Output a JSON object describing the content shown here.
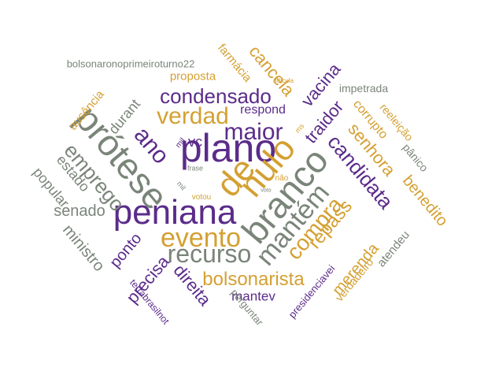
{
  "palette": {
    "purple": "#5b2c8a",
    "gold": "#d4a032",
    "gray": "#7a8579"
  },
  "words": [
    {
      "text": "plano",
      "color": "purple"
    },
    {
      "text": "peniana",
      "color": "purple"
    },
    {
      "text": "prótese",
      "color": "gray"
    },
    {
      "text": "branco",
      "color": "gray"
    },
    {
      "text": "nulo",
      "color": "gold"
    },
    {
      "text": "de",
      "color": "gold"
    },
    {
      "text": "evento",
      "color": "gold"
    },
    {
      "text": "mantém",
      "color": "gray"
    },
    {
      "text": "recurso",
      "color": "gray"
    },
    {
      "text": "maior",
      "color": "purple"
    },
    {
      "text": "verdad",
      "color": "gold"
    },
    {
      "text": "condensado",
      "color": "purple"
    },
    {
      "text": "ano",
      "color": "purple"
    },
    {
      "text": "compra",
      "color": "gold"
    },
    {
      "text": "candidata",
      "color": "purple"
    },
    {
      "text": "bolsonarista",
      "color": "gold"
    },
    {
      "text": "emprego",
      "color": "gray"
    },
    {
      "text": "senado",
      "color": "gray"
    },
    {
      "text": "repass",
      "color": "gold"
    },
    {
      "text": "benedito",
      "color": "gold"
    },
    {
      "text": "senhora",
      "color": "gold"
    },
    {
      "text": "cancela",
      "color": "gold"
    },
    {
      "text": "vacina",
      "color": "purple"
    },
    {
      "text": "traidor",
      "color": "purple"
    },
    {
      "text": "merenda",
      "color": "gold"
    },
    {
      "text": "precisa",
      "color": "purple"
    },
    {
      "text": "direita",
      "color": "purple"
    },
    {
      "text": "ponto",
      "color": "purple"
    },
    {
      "text": "ministro",
      "color": "gray"
    },
    {
      "text": "popular",
      "color": "gray"
    },
    {
      "text": "estado",
      "color": "gray"
    },
    {
      "text": "durant",
      "color": "gray"
    },
    {
      "text": "ausência",
      "color": "gold"
    },
    {
      "text": "proposta",
      "color": "gold"
    },
    {
      "text": "farmácia",
      "color": "gold"
    },
    {
      "text": "respond",
      "color": "purple"
    },
    {
      "text": "vc",
      "color": "purple"
    },
    {
      "text": "mantev",
      "color": "purple"
    },
    {
      "text": "corrupto",
      "color": "gold"
    },
    {
      "text": "impetrada",
      "color": "gray"
    },
    {
      "text": "reeleição",
      "color": "gold"
    },
    {
      "text": "pânico",
      "color": "gray"
    },
    {
      "text": "atendeu",
      "color": "gray"
    },
    {
      "text": "verdadeiro",
      "color": "gold"
    },
    {
      "text": "presidenciavei",
      "color": "purple"
    },
    {
      "text": "perguntar",
      "color": "gray"
    },
    {
      "text": "terrabrasilnot",
      "color": "purple"
    },
    {
      "text": "bolsonaronoprimeiroturno22",
      "color": "gray"
    },
    {
      "text": "ridícula",
      "color": "gold"
    },
    {
      "text": "frase",
      "color": "gray"
    },
    {
      "text": "votou",
      "color": "gold"
    },
    {
      "text": "não",
      "color": "gold"
    },
    {
      "text": "mil",
      "color": "purple"
    },
    {
      "text": "ms",
      "color": "gold"
    },
    {
      "text": "mil",
      "color": "gray"
    },
    {
      "text": "voto",
      "color": "gray"
    }
  ]
}
